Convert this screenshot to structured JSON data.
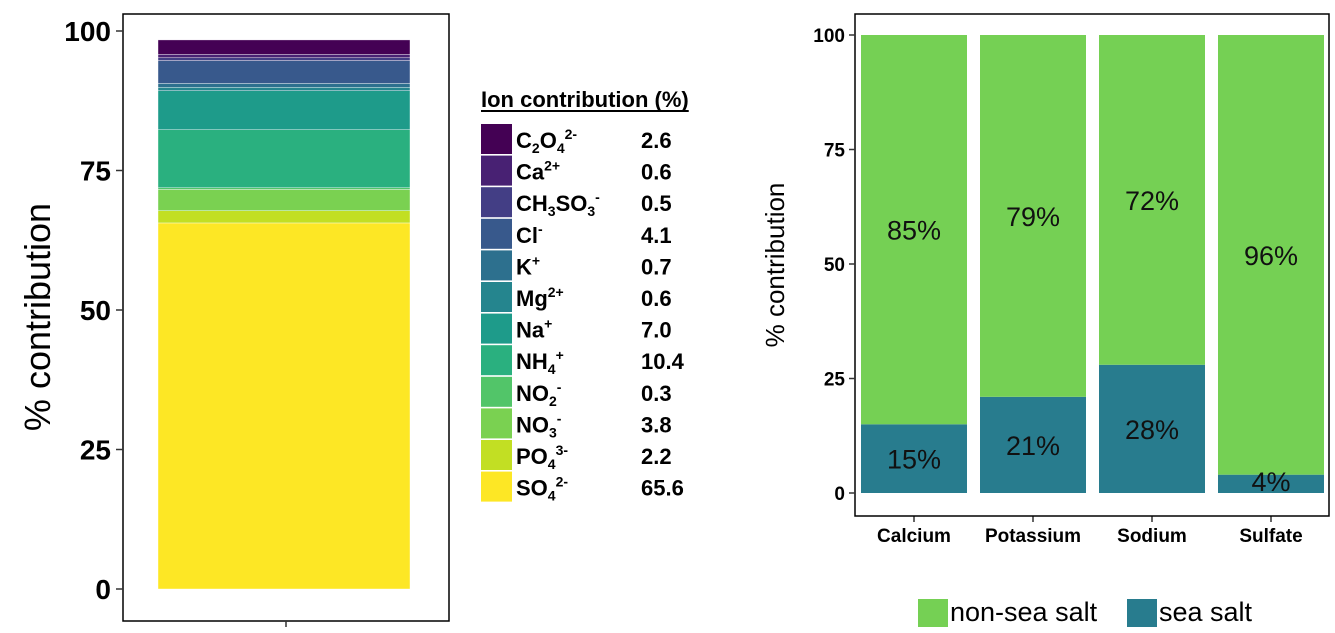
{
  "chart_data": [
    {
      "type": "bar",
      "stacked": true,
      "ylabel": "% contribution",
      "ylim": [
        0,
        100
      ],
      "yticks": [
        0,
        25,
        50,
        75,
        100
      ],
      "grid": false,
      "legend_title": "Ion contribution (%)",
      "legend_placement": "right",
      "series": [
        {
          "name": "SO4 2-",
          "label": {
            "base": "SO",
            "sub": "4",
            "sup": "2-"
          },
          "value": 65.6,
          "value_label": "65.6",
          "color": "#FDE725"
        },
        {
          "name": "PO4 3-",
          "label": {
            "base": "PO",
            "sub": "4",
            "sup": "3-"
          },
          "value": 2.2,
          "value_label": "2.2",
          "color": "#C2DF23"
        },
        {
          "name": "NO3 -",
          "label": {
            "base": "NO",
            "sub": "3",
            "sup": "-"
          },
          "value": 3.8,
          "value_label": "3.8",
          "color": "#7AD151"
        },
        {
          "name": "NO2 -",
          "label": {
            "base": "NO",
            "sub": "2",
            "sup": "-"
          },
          "value": 0.3,
          "value_label": "0.3",
          "color": "#52C569"
        },
        {
          "name": "NH4 +",
          "label": {
            "base": "NH",
            "sub": "4",
            "sup": "+"
          },
          "value": 10.4,
          "value_label": "10.4",
          "color": "#2AB07F"
        },
        {
          "name": "Na +",
          "label": {
            "base": "Na",
            "sub": "",
            "sup": "+"
          },
          "value": 7.0,
          "value_label": "7.0",
          "color": "#1E9B8A"
        },
        {
          "name": "Mg 2+",
          "label": {
            "base": "Mg",
            "sub": "",
            "sup": "2+"
          },
          "value": 0.6,
          "value_label": "0.6",
          "color": "#25858E"
        },
        {
          "name": "K +",
          "label": {
            "base": "K",
            "sub": "",
            "sup": "+"
          },
          "value": 0.7,
          "value_label": "0.7",
          "color": "#2D708E"
        },
        {
          "name": "Cl -",
          "label": {
            "base": "Cl",
            "sub": "",
            "sup": "-"
          },
          "value": 4.1,
          "value_label": "4.1",
          "color": "#38598C"
        },
        {
          "name": "CH3SO3 -",
          "label": {
            "base": "CH",
            "sub": "3",
            "base2": "SO",
            "sub2": "3",
            "sup": "-"
          },
          "value": 0.5,
          "value_label": "0.5",
          "color": "#433E85"
        },
        {
          "name": "Ca 2+",
          "label": {
            "base": "Ca",
            "sub": "",
            "sup": "2+"
          },
          "value": 0.6,
          "value_label": "0.6",
          "color": "#482173"
        },
        {
          "name": "C2O4 2-",
          "label": {
            "base": "C",
            "sub": "2",
            "base2": "O",
            "sub2": "4",
            "sup": "2-"
          },
          "value": 2.6,
          "value_label": "2.6",
          "color": "#440154"
        }
      ]
    },
    {
      "type": "bar",
      "stacked": true,
      "ylabel": "% contribution",
      "ylim": [
        0,
        100
      ],
      "yticks": [
        0,
        25,
        50,
        75,
        100
      ],
      "grid": false,
      "legend_placement": "bottom",
      "categories": [
        "Calcium",
        "Potassium",
        "Sodium",
        "Sulfate"
      ],
      "series": [
        {
          "name": "sea salt",
          "values": [
            15,
            21,
            28,
            4
          ],
          "labels": [
            "15%",
            "21%",
            "28%",
            "4%"
          ],
          "color": "#287C8E"
        },
        {
          "name": "non-sea salt",
          "values": [
            85,
            79,
            72,
            96
          ],
          "labels": [
            "85%",
            "79%",
            "72%",
            "96%"
          ],
          "color": "#75D054"
        }
      ]
    }
  ]
}
